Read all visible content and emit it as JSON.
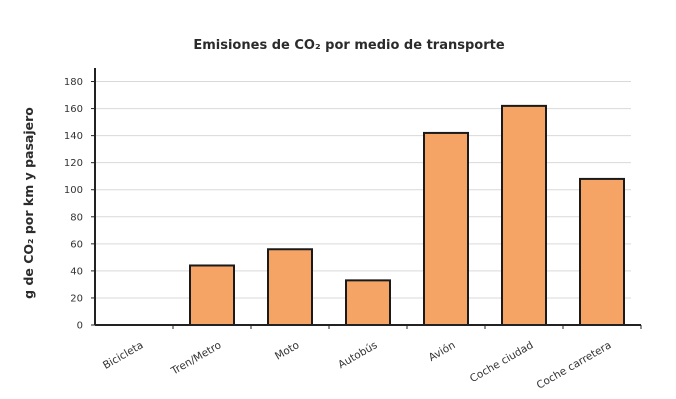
{
  "chart_data": {
    "type": "bar",
    "title": "Emisiones de CO₂ por medio de transporte",
    "xlabel": "",
    "ylabel": "g de CO₂ por km y pasajero",
    "categories": [
      "Bicicleta",
      "Tren/Metro",
      "Moto",
      "Autobús",
      "Avión",
      "Coche ciudad",
      "Coche carretera"
    ],
    "values": [
      0,
      44,
      56,
      33,
      142,
      162,
      108
    ],
    "ylim": [
      0,
      190
    ],
    "yticks": [
      0,
      20,
      40,
      60,
      80,
      100,
      120,
      140,
      160,
      180
    ],
    "grid": true,
    "legend": "none",
    "colors": {
      "bar_fill": "#f5a466",
      "bar_stroke": "#1a1a1a",
      "grid": "#d9d9d9",
      "axis": "#222222"
    }
  }
}
